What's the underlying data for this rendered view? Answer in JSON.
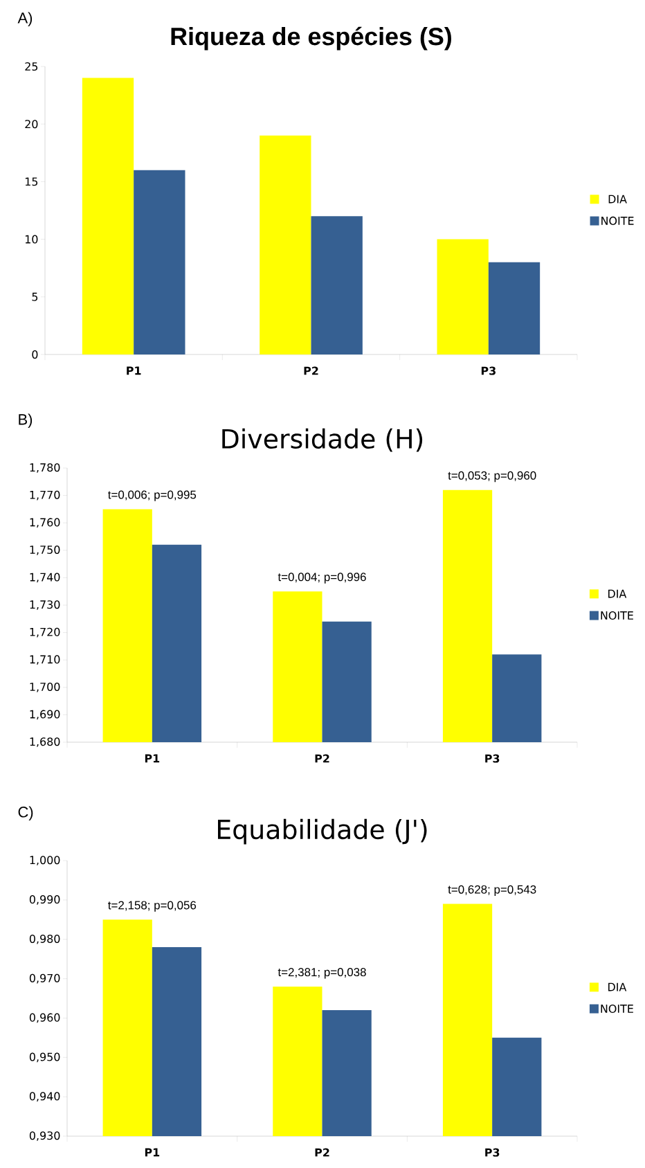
{
  "chart_data": [
    {
      "type": "bar",
      "title": "Riqueza de espécies (S)",
      "categories": [
        "P1",
        "P2",
        "P3"
      ],
      "series": [
        {
          "name": "DIA",
          "color": "#ffff00",
          "values": [
            24,
            19,
            10
          ]
        },
        {
          "name": "NOITE",
          "color": "#366092",
          "values": [
            16,
            12,
            8
          ]
        }
      ],
      "ylim": [
        0,
        25
      ],
      "yticks": [
        0,
        5,
        10,
        15,
        20,
        25
      ],
      "legend": "right",
      "annotations": [
        "A)"
      ]
    },
    {
      "type": "bar",
      "title": "Diversidade (H)",
      "categories": [
        "P1",
        "P2",
        "P3"
      ],
      "series": [
        {
          "name": "DIA",
          "color": "#ffff00",
          "values": [
            1.765,
            1.735,
            1.772
          ]
        },
        {
          "name": "NOITE",
          "color": "#366092",
          "values": [
            1.752,
            1.724,
            1.712
          ]
        }
      ],
      "ylim": [
        1.68,
        1.78
      ],
      "yticks": [
        {
          "value": 1.68,
          "label": "1,680"
        },
        {
          "value": 1.69,
          "label": "1,690"
        },
        {
          "value": 1.7,
          "label": "1,700"
        },
        {
          "value": 1.71,
          "label": "1,710"
        },
        {
          "value": 1.72,
          "label": "1,720"
        },
        {
          "value": 1.73,
          "label": "1,730"
        },
        {
          "value": 1.74,
          "label": "1,740"
        },
        {
          "value": 1.75,
          "label": "1,750"
        },
        {
          "value": 1.76,
          "label": "1,760"
        },
        {
          "value": 1.77,
          "label": "1,770"
        },
        {
          "value": 1.78,
          "label": "1,780"
        }
      ],
      "legend": "right",
      "annotations": [
        "B)",
        {
          "text": "t=0,006; p=0,995",
          "x": "P1",
          "y": 1.765
        },
        {
          "text": "t=0,004; p=0,996",
          "x": "P2",
          "y": 1.735
        },
        {
          "text": "t=0,053; p=0,960",
          "x": "P3",
          "y": 1.772
        }
      ]
    },
    {
      "type": "bar",
      "title": "Equabilidade (J')",
      "categories": [
        "P1",
        "P2",
        "P3"
      ],
      "series": [
        {
          "name": "DIA",
          "color": "#ffff00",
          "values": [
            0.985,
            0.968,
            0.989
          ]
        },
        {
          "name": "NOITE",
          "color": "#366092",
          "values": [
            0.978,
            0.962,
            0.955
          ]
        }
      ],
      "ylim": [
        0.93,
        1.0
      ],
      "yticks": [
        {
          "value": 0.93,
          "label": "0,930"
        },
        {
          "value": 0.94,
          "label": "0,940"
        },
        {
          "value": 0.95,
          "label": "0,950"
        },
        {
          "value": 0.96,
          "label": "0,960"
        },
        {
          "value": 0.97,
          "label": "0,970"
        },
        {
          "value": 0.98,
          "label": "0,980"
        },
        {
          "value": 0.99,
          "label": "0,990"
        },
        {
          "value": 1.0,
          "label": "1,000"
        }
      ],
      "legend": "right",
      "annotations": [
        "C)",
        {
          "text": "t=2,158; p=0,056",
          "x": "P1",
          "y": 0.985
        },
        {
          "text": "t=2,381; p=0,038",
          "x": "P2",
          "y": 0.968
        },
        {
          "text": "t=0,628; p=0,543",
          "x": "P3",
          "y": 0.989
        }
      ]
    }
  ]
}
